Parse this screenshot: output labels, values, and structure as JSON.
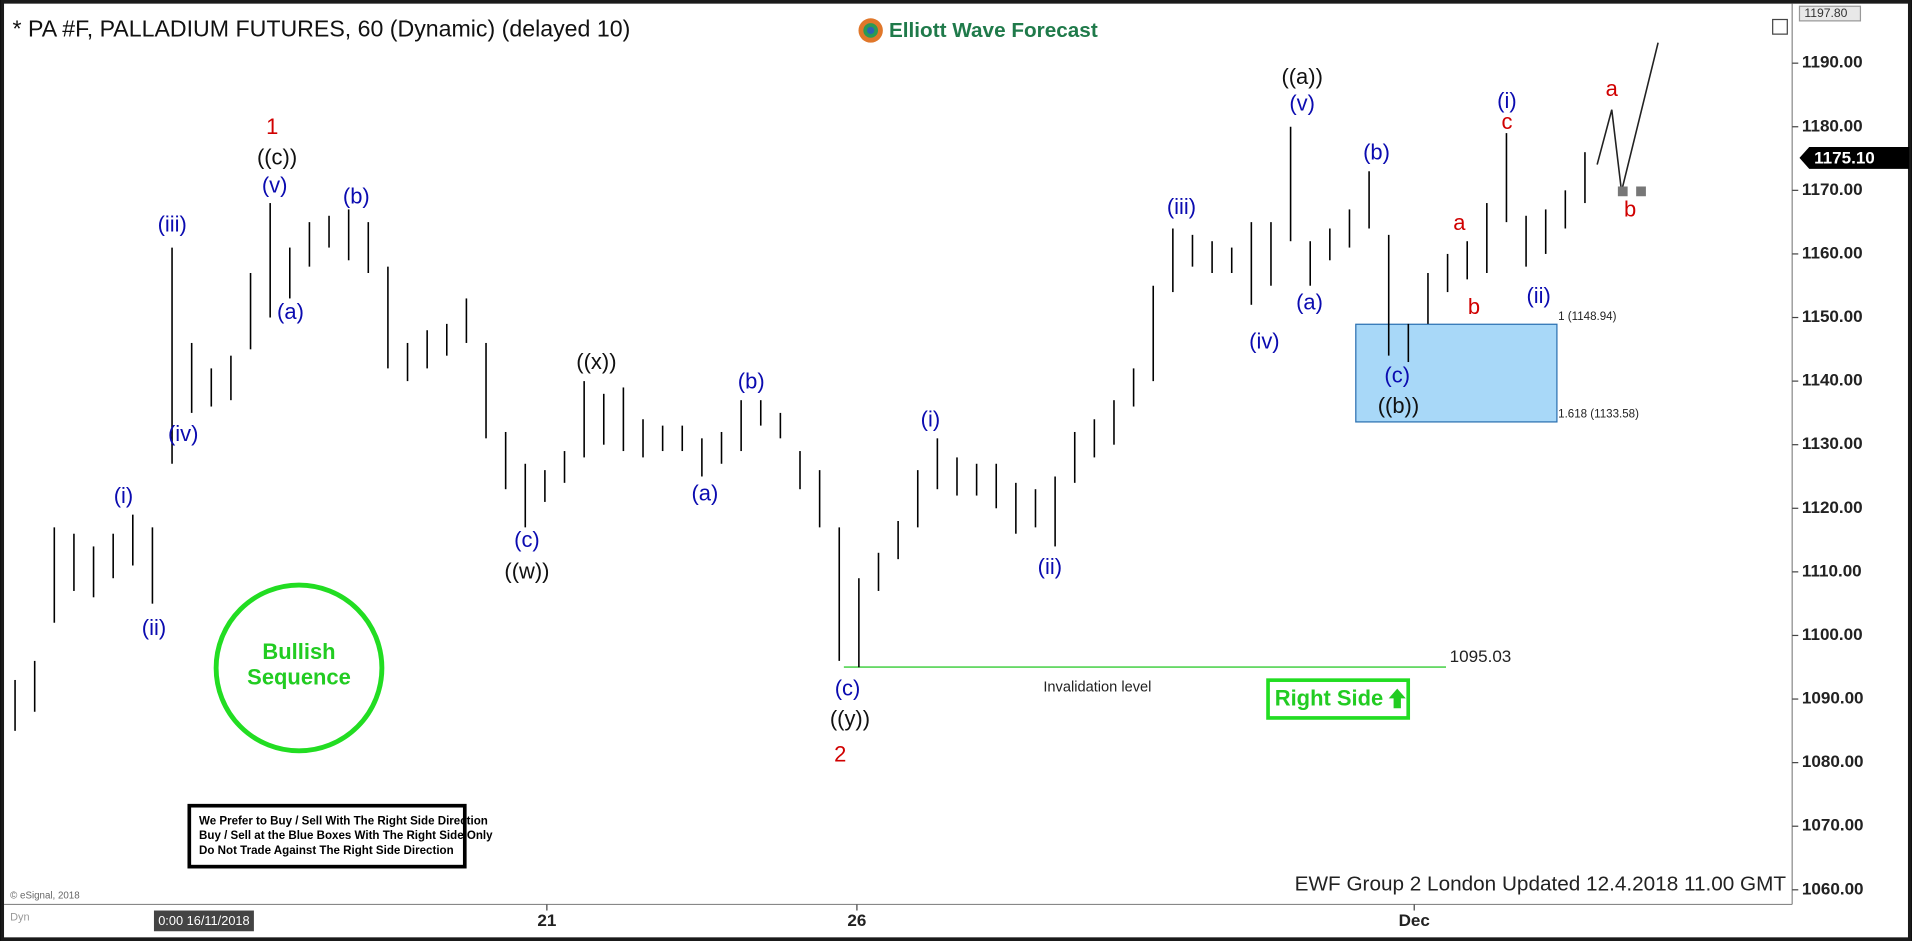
{
  "chart_data": {
    "type": "ohlc",
    "title": "* PA #F, PALLADIUM FUTURES, 60 (Dynamic) (delayed 10)",
    "brand": "Elliott Wave Forecast",
    "high": [
      1093,
      1096,
      1117,
      1116,
      1114,
      1116,
      1119,
      1117,
      1161,
      1146,
      1142,
      1144,
      1157,
      1168,
      1161,
      1165,
      1166,
      1167,
      1165,
      1158,
      1146,
      1148,
      1149,
      1153,
      1146,
      1132,
      1127,
      1126,
      1129,
      1140,
      1138,
      1139,
      1134,
      1133,
      1133,
      1131,
      1132,
      1137,
      1137,
      1135,
      1129,
      1126,
      1117,
      1109,
      1113,
      1118,
      1126,
      1131,
      1128,
      1127,
      1127,
      1124,
      1123,
      1125,
      1132,
      1134,
      1137,
      1142,
      1155,
      1164,
      1163,
      1162,
      1161,
      1165,
      1165,
      1180,
      1162,
      1164,
      1167,
      1173,
      1163,
      1149,
      1157,
      1160,
      1162,
      1168,
      1179,
      1166,
      1167,
      1170,
      1176
    ],
    "low": [
      1085,
      1088,
      1102,
      1107,
      1106,
      1109,
      1111,
      1105,
      1127,
      1135,
      1136,
      1137,
      1145,
      1150,
      1153,
      1158,
      1161,
      1159,
      1157,
      1142,
      1140,
      1142,
      1144,
      1146,
      1131,
      1123,
      1117,
      1121,
      1124,
      1128,
      1130,
      1129,
      1128,
      1129,
      1129,
      1125,
      1127,
      1129,
      1133,
      1131,
      1123,
      1117,
      1096,
      1095,
      1107,
      1112,
      1117,
      1123,
      1122,
      1122,
      1120,
      1116,
      1117,
      1114,
      1124,
      1128,
      1130,
      1136,
      1140,
      1154,
      1158,
      1157,
      1157,
      1152,
      1155,
      1162,
      1155,
      1159,
      1161,
      1164,
      1144,
      1143,
      1149,
      1154,
      1156,
      1157,
      1165,
      1158,
      1160,
      1164,
      1168
    ],
    "color": "#000000",
    "xlim": [
      -0.5,
      90.56
    ],
    "xticks": [
      {
        "value": 27.1,
        "label": "21"
      },
      {
        "value": 42.9,
        "label": "26"
      },
      {
        "value": 71.3,
        "label": "Dec"
      }
    ],
    "cursor_label": "0:00 16/11/2018",
    "ylim": [
      1057.7,
      1198.4
    ],
    "yticks": [
      {
        "value": 1060,
        "label": "1060.00"
      },
      {
        "value": 1070,
        "label": "1070.00"
      },
      {
        "value": 1080,
        "label": "1080.00"
      },
      {
        "value": 1090,
        "label": "1090.00"
      },
      {
        "value": 1100,
        "label": "1100.00"
      },
      {
        "value": 1110,
        "label": "1110.00"
      },
      {
        "value": 1120,
        "label": "1120.00"
      },
      {
        "value": 1130,
        "label": "1130.00"
      },
      {
        "value": 1140,
        "label": "1140.00"
      },
      {
        "value": 1150,
        "label": "1150.00"
      },
      {
        "value": 1160,
        "label": "1160.00"
      },
      {
        "value": 1170,
        "label": "1170.00"
      },
      {
        "value": 1180,
        "label": "1180.00"
      },
      {
        "value": 1190,
        "label": "1190.00"
      }
    ],
    "top_value": {
      "value": 1197.8,
      "label": "1197.80"
    },
    "last_price": {
      "value": 1175.1,
      "label": "1175.10"
    },
    "invalidation": {
      "value": 1095.03,
      "label": "1095.03",
      "text": "Invalidation level",
      "color": "#33cc33"
    },
    "blue_box": {
      "top": {
        "value": 1148.94,
        "label": "1 (1148.94)"
      },
      "bottom": {
        "value": 1133.58,
        "label": "1.618 (1133.58)"
      },
      "color": "#a8d8f8"
    },
    "wave_labels": [
      {
        "text": "(i)",
        "color": "#0b0bb0"
      },
      {
        "text": "(ii)",
        "color": "#0b0bb0"
      },
      {
        "text": "(iii)",
        "color": "#0b0bb0"
      },
      {
        "text": "(iv)",
        "color": "#0b0bb0"
      },
      {
        "text": "(v)",
        "color": "#0b0bb0"
      },
      {
        "text": "(a)",
        "color": "#0b0bb0"
      },
      {
        "text": "(b)",
        "color": "#0b0bb0"
      },
      {
        "text": "(c)",
        "color": "#0b0bb0"
      },
      {
        "text": "(a)",
        "color": "#0b0bb0"
      },
      {
        "text": "(b)",
        "color": "#0b0bb0"
      },
      {
        "text": "(c)",
        "color": "#0b0bb0"
      },
      {
        "text": "(i)",
        "color": "#0b0bb0"
      },
      {
        "text": "(ii)",
        "color": "#0b0bb0"
      },
      {
        "text": "(iii)",
        "color": "#0b0bb0"
      },
      {
        "text": "(iv)",
        "color": "#0b0bb0"
      },
      {
        "text": "(v)",
        "color": "#0b0bb0"
      },
      {
        "text": "(a)",
        "color": "#0b0bb0"
      },
      {
        "text": "(b)",
        "color": "#0b0bb0"
      },
      {
        "text": "(c)",
        "color": "#0b0bb0"
      },
      {
        "text": "(i)",
        "color": "#0b0bb0"
      },
      {
        "text": "(ii)",
        "color": "#0b0bb0"
      },
      {
        "text": "((c))",
        "color": "#111111"
      },
      {
        "text": "((w))",
        "color": "#111111"
      },
      {
        "text": "((x))",
        "color": "#111111"
      },
      {
        "text": "((y))",
        "color": "#111111"
      },
      {
        "text": "((a))",
        "color": "#111111"
      },
      {
        "text": "((b))",
        "color": "#111111"
      },
      {
        "text": "1",
        "color": "#d00000"
      },
      {
        "text": "2",
        "color": "#d00000"
      },
      {
        "text": "a",
        "color": "#d00000"
      },
      {
        "text": "b",
        "color": "#d00000"
      },
      {
        "text": "c",
        "color": "#d00000"
      },
      {
        "text": "a",
        "color": "#d00000"
      },
      {
        "text": "b",
        "color": "#d00000"
      }
    ],
    "bullish_sequence": [
      "Bullish",
      "Sequence"
    ],
    "right_side": "Right Side",
    "rules_note": [
      "We Prefer to Buy / Sell With The Right Side Direction",
      "Buy / Sell at the Blue Boxes With The Right Side Only",
      "Do Not Trade Against The Right Side Direction"
    ],
    "footer": "EWF Group 2 London Updated 12.4.2018 11.00 GMT",
    "copyright": "© eSignal, 2018",
    "dyn": "Dyn"
  }
}
